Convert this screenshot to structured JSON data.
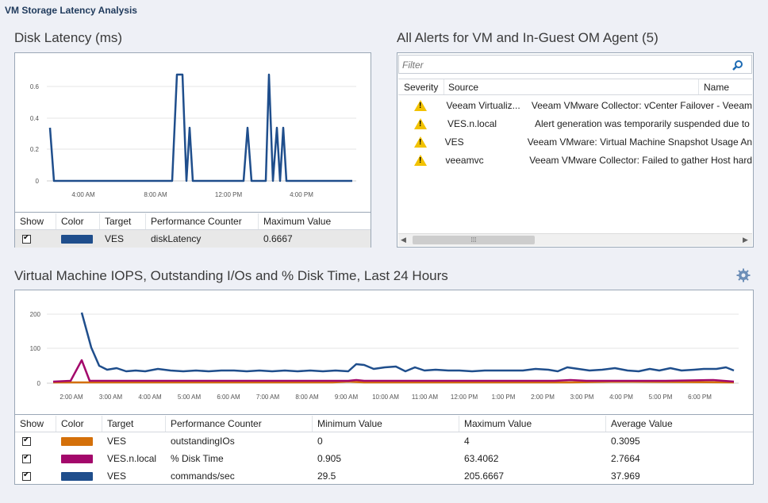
{
  "app_title": "VM Storage Latency Analysis",
  "latency": {
    "title": "Disk Latency (ms)",
    "chart": {
      "yticks": [
        "0.6",
        "0.4",
        "0.2",
        "0"
      ],
      "xticks": [
        "4:00 AM",
        "8:00 AM",
        "12:00 PM",
        "4:00 PM"
      ]
    },
    "table": {
      "headers": [
        "Show",
        "Color",
        "Target",
        "Performance Counter",
        "Maximum Value"
      ],
      "rows": [
        {
          "target": "VES",
          "counter": "diskLatency",
          "max": "0.6667",
          "color": "#1f4e8c"
        }
      ]
    }
  },
  "alerts": {
    "title": "All Alerts for VM and In-Guest OM Agent (5)",
    "filter_placeholder": "Filter",
    "headers": [
      "Severity",
      "Source",
      "Name"
    ],
    "rows": [
      {
        "source": "Veeam Virtualiz...",
        "name": "Veeam VMware Collector: vCenter Failover - Veeam"
      },
      {
        "source": "VES.n.local",
        "name": "Alert generation was temporarily suspended due to"
      },
      {
        "source": "VES",
        "name": "Veeam VMware: Virtual Machine Snapshot Usage An"
      },
      {
        "source": "veeamvc",
        "name": "Veeam VMware Collector: Failed to gather Host hard"
      }
    ],
    "scroll_grip": "⁞⁞⁞"
  },
  "iops": {
    "title": "Virtual Machine IOPS, Outstanding I/Os and % Disk Time, Last 24 Hours",
    "chart": {
      "yticks": [
        "200",
        "100",
        "0"
      ],
      "xticks": [
        "2:00 AM",
        "3:00 AM",
        "4:00 AM",
        "5:00 AM",
        "6:00 AM",
        "7:00 AM",
        "8:00 AM",
        "9:00 AM",
        "10:00 AM",
        "11:00 AM",
        "12:00 PM",
        "1:00 PM",
        "2:00 PM",
        "3:00 PM",
        "4:00 PM",
        "5:00 PM",
        "6:00 PM"
      ]
    },
    "table": {
      "headers": [
        "Show",
        "Color",
        "Target",
        "Performance Counter",
        "Minimum Value",
        "Maximum Value",
        "Average Value"
      ],
      "rows": [
        {
          "target": "VES",
          "counter": "outstandingIOs",
          "min": "0",
          "max": "4",
          "avg": "0.3095",
          "color": "#d4700a"
        },
        {
          "target": "VES.n.local",
          "counter": "% Disk Time",
          "min": "0.905",
          "max": "63.4062",
          "avg": "2.7664",
          "color": "#a3086b"
        },
        {
          "target": "VES",
          "counter": "commands/sec",
          "min": "29.5",
          "max": "205.6667",
          "avg": "37.969",
          "color": "#1f4e8c"
        }
      ]
    }
  }
}
